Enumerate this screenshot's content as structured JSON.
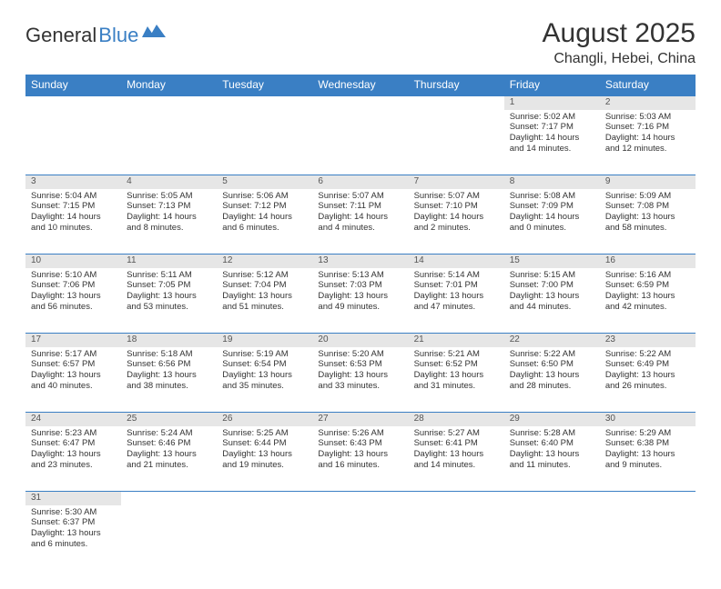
{
  "logo": {
    "text1": "General",
    "text2": "Blue"
  },
  "title": {
    "month": "August 2025",
    "location": "Changli, Hebei, China"
  },
  "colors": {
    "header_bg": "#3a7fc4",
    "header_text": "#ffffff",
    "daynum_bg": "#e6e6e6",
    "border": "#3a7fc4",
    "text": "#333333"
  },
  "weekdays": [
    "Sunday",
    "Monday",
    "Tuesday",
    "Wednesday",
    "Thursday",
    "Friday",
    "Saturday"
  ],
  "weeks": [
    [
      null,
      null,
      null,
      null,
      null,
      {
        "day": "1",
        "sunrise": "Sunrise: 5:02 AM",
        "sunset": "Sunset: 7:17 PM",
        "daylight": "Daylight: 14 hours and 14 minutes."
      },
      {
        "day": "2",
        "sunrise": "Sunrise: 5:03 AM",
        "sunset": "Sunset: 7:16 PM",
        "daylight": "Daylight: 14 hours and 12 minutes."
      }
    ],
    [
      {
        "day": "3",
        "sunrise": "Sunrise: 5:04 AM",
        "sunset": "Sunset: 7:15 PM",
        "daylight": "Daylight: 14 hours and 10 minutes."
      },
      {
        "day": "4",
        "sunrise": "Sunrise: 5:05 AM",
        "sunset": "Sunset: 7:13 PM",
        "daylight": "Daylight: 14 hours and 8 minutes."
      },
      {
        "day": "5",
        "sunrise": "Sunrise: 5:06 AM",
        "sunset": "Sunset: 7:12 PM",
        "daylight": "Daylight: 14 hours and 6 minutes."
      },
      {
        "day": "6",
        "sunrise": "Sunrise: 5:07 AM",
        "sunset": "Sunset: 7:11 PM",
        "daylight": "Daylight: 14 hours and 4 minutes."
      },
      {
        "day": "7",
        "sunrise": "Sunrise: 5:07 AM",
        "sunset": "Sunset: 7:10 PM",
        "daylight": "Daylight: 14 hours and 2 minutes."
      },
      {
        "day": "8",
        "sunrise": "Sunrise: 5:08 AM",
        "sunset": "Sunset: 7:09 PM",
        "daylight": "Daylight: 14 hours and 0 minutes."
      },
      {
        "day": "9",
        "sunrise": "Sunrise: 5:09 AM",
        "sunset": "Sunset: 7:08 PM",
        "daylight": "Daylight: 13 hours and 58 minutes."
      }
    ],
    [
      {
        "day": "10",
        "sunrise": "Sunrise: 5:10 AM",
        "sunset": "Sunset: 7:06 PM",
        "daylight": "Daylight: 13 hours and 56 minutes."
      },
      {
        "day": "11",
        "sunrise": "Sunrise: 5:11 AM",
        "sunset": "Sunset: 7:05 PM",
        "daylight": "Daylight: 13 hours and 53 minutes."
      },
      {
        "day": "12",
        "sunrise": "Sunrise: 5:12 AM",
        "sunset": "Sunset: 7:04 PM",
        "daylight": "Daylight: 13 hours and 51 minutes."
      },
      {
        "day": "13",
        "sunrise": "Sunrise: 5:13 AM",
        "sunset": "Sunset: 7:03 PM",
        "daylight": "Daylight: 13 hours and 49 minutes."
      },
      {
        "day": "14",
        "sunrise": "Sunrise: 5:14 AM",
        "sunset": "Sunset: 7:01 PM",
        "daylight": "Daylight: 13 hours and 47 minutes."
      },
      {
        "day": "15",
        "sunrise": "Sunrise: 5:15 AM",
        "sunset": "Sunset: 7:00 PM",
        "daylight": "Daylight: 13 hours and 44 minutes."
      },
      {
        "day": "16",
        "sunrise": "Sunrise: 5:16 AM",
        "sunset": "Sunset: 6:59 PM",
        "daylight": "Daylight: 13 hours and 42 minutes."
      }
    ],
    [
      {
        "day": "17",
        "sunrise": "Sunrise: 5:17 AM",
        "sunset": "Sunset: 6:57 PM",
        "daylight": "Daylight: 13 hours and 40 minutes."
      },
      {
        "day": "18",
        "sunrise": "Sunrise: 5:18 AM",
        "sunset": "Sunset: 6:56 PM",
        "daylight": "Daylight: 13 hours and 38 minutes."
      },
      {
        "day": "19",
        "sunrise": "Sunrise: 5:19 AM",
        "sunset": "Sunset: 6:54 PM",
        "daylight": "Daylight: 13 hours and 35 minutes."
      },
      {
        "day": "20",
        "sunrise": "Sunrise: 5:20 AM",
        "sunset": "Sunset: 6:53 PM",
        "daylight": "Daylight: 13 hours and 33 minutes."
      },
      {
        "day": "21",
        "sunrise": "Sunrise: 5:21 AM",
        "sunset": "Sunset: 6:52 PM",
        "daylight": "Daylight: 13 hours and 31 minutes."
      },
      {
        "day": "22",
        "sunrise": "Sunrise: 5:22 AM",
        "sunset": "Sunset: 6:50 PM",
        "daylight": "Daylight: 13 hours and 28 minutes."
      },
      {
        "day": "23",
        "sunrise": "Sunrise: 5:22 AM",
        "sunset": "Sunset: 6:49 PM",
        "daylight": "Daylight: 13 hours and 26 minutes."
      }
    ],
    [
      {
        "day": "24",
        "sunrise": "Sunrise: 5:23 AM",
        "sunset": "Sunset: 6:47 PM",
        "daylight": "Daylight: 13 hours and 23 minutes."
      },
      {
        "day": "25",
        "sunrise": "Sunrise: 5:24 AM",
        "sunset": "Sunset: 6:46 PM",
        "daylight": "Daylight: 13 hours and 21 minutes."
      },
      {
        "day": "26",
        "sunrise": "Sunrise: 5:25 AM",
        "sunset": "Sunset: 6:44 PM",
        "daylight": "Daylight: 13 hours and 19 minutes."
      },
      {
        "day": "27",
        "sunrise": "Sunrise: 5:26 AM",
        "sunset": "Sunset: 6:43 PM",
        "daylight": "Daylight: 13 hours and 16 minutes."
      },
      {
        "day": "28",
        "sunrise": "Sunrise: 5:27 AM",
        "sunset": "Sunset: 6:41 PM",
        "daylight": "Daylight: 13 hours and 14 minutes."
      },
      {
        "day": "29",
        "sunrise": "Sunrise: 5:28 AM",
        "sunset": "Sunset: 6:40 PM",
        "daylight": "Daylight: 13 hours and 11 minutes."
      },
      {
        "day": "30",
        "sunrise": "Sunrise: 5:29 AM",
        "sunset": "Sunset: 6:38 PM",
        "daylight": "Daylight: 13 hours and 9 minutes."
      }
    ],
    [
      {
        "day": "31",
        "sunrise": "Sunrise: 5:30 AM",
        "sunset": "Sunset: 6:37 PM",
        "daylight": "Daylight: 13 hours and 6 minutes."
      },
      null,
      null,
      null,
      null,
      null,
      null
    ]
  ]
}
